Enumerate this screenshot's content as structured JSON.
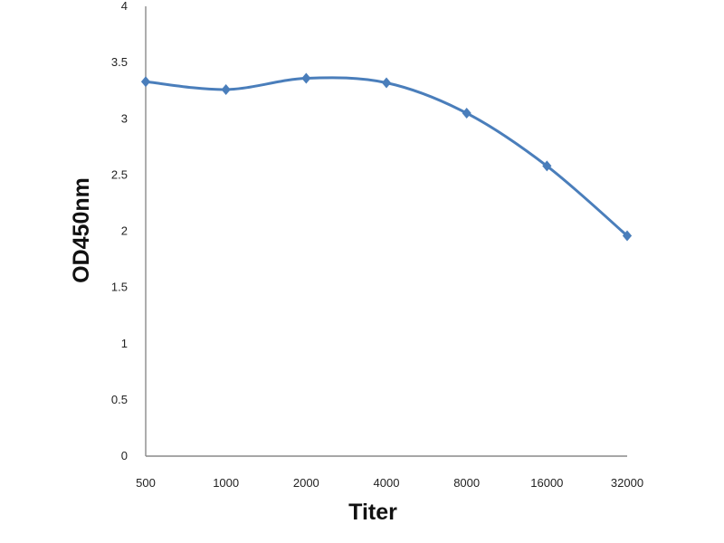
{
  "chart_data": {
    "type": "line",
    "title": "",
    "xlabel": "Titer",
    "ylabel": "OD450nm",
    "categories": [
      "500",
      "1000",
      "2000",
      "4000",
      "8000",
      "16000",
      "32000"
    ],
    "series": [
      {
        "values": [
          3.33,
          3.26,
          3.36,
          3.32,
          3.05,
          2.58,
          1.96
        ],
        "color": "#4a7ebb",
        "marker": "diamond",
        "smooth": true
      }
    ],
    "ylim": [
      0,
      4
    ],
    "yticks": [
      "0",
      "0.5",
      "1",
      "1.5",
      "2",
      "2.5",
      "3",
      "3.5",
      "4"
    ],
    "grid": false,
    "legend": "none"
  }
}
